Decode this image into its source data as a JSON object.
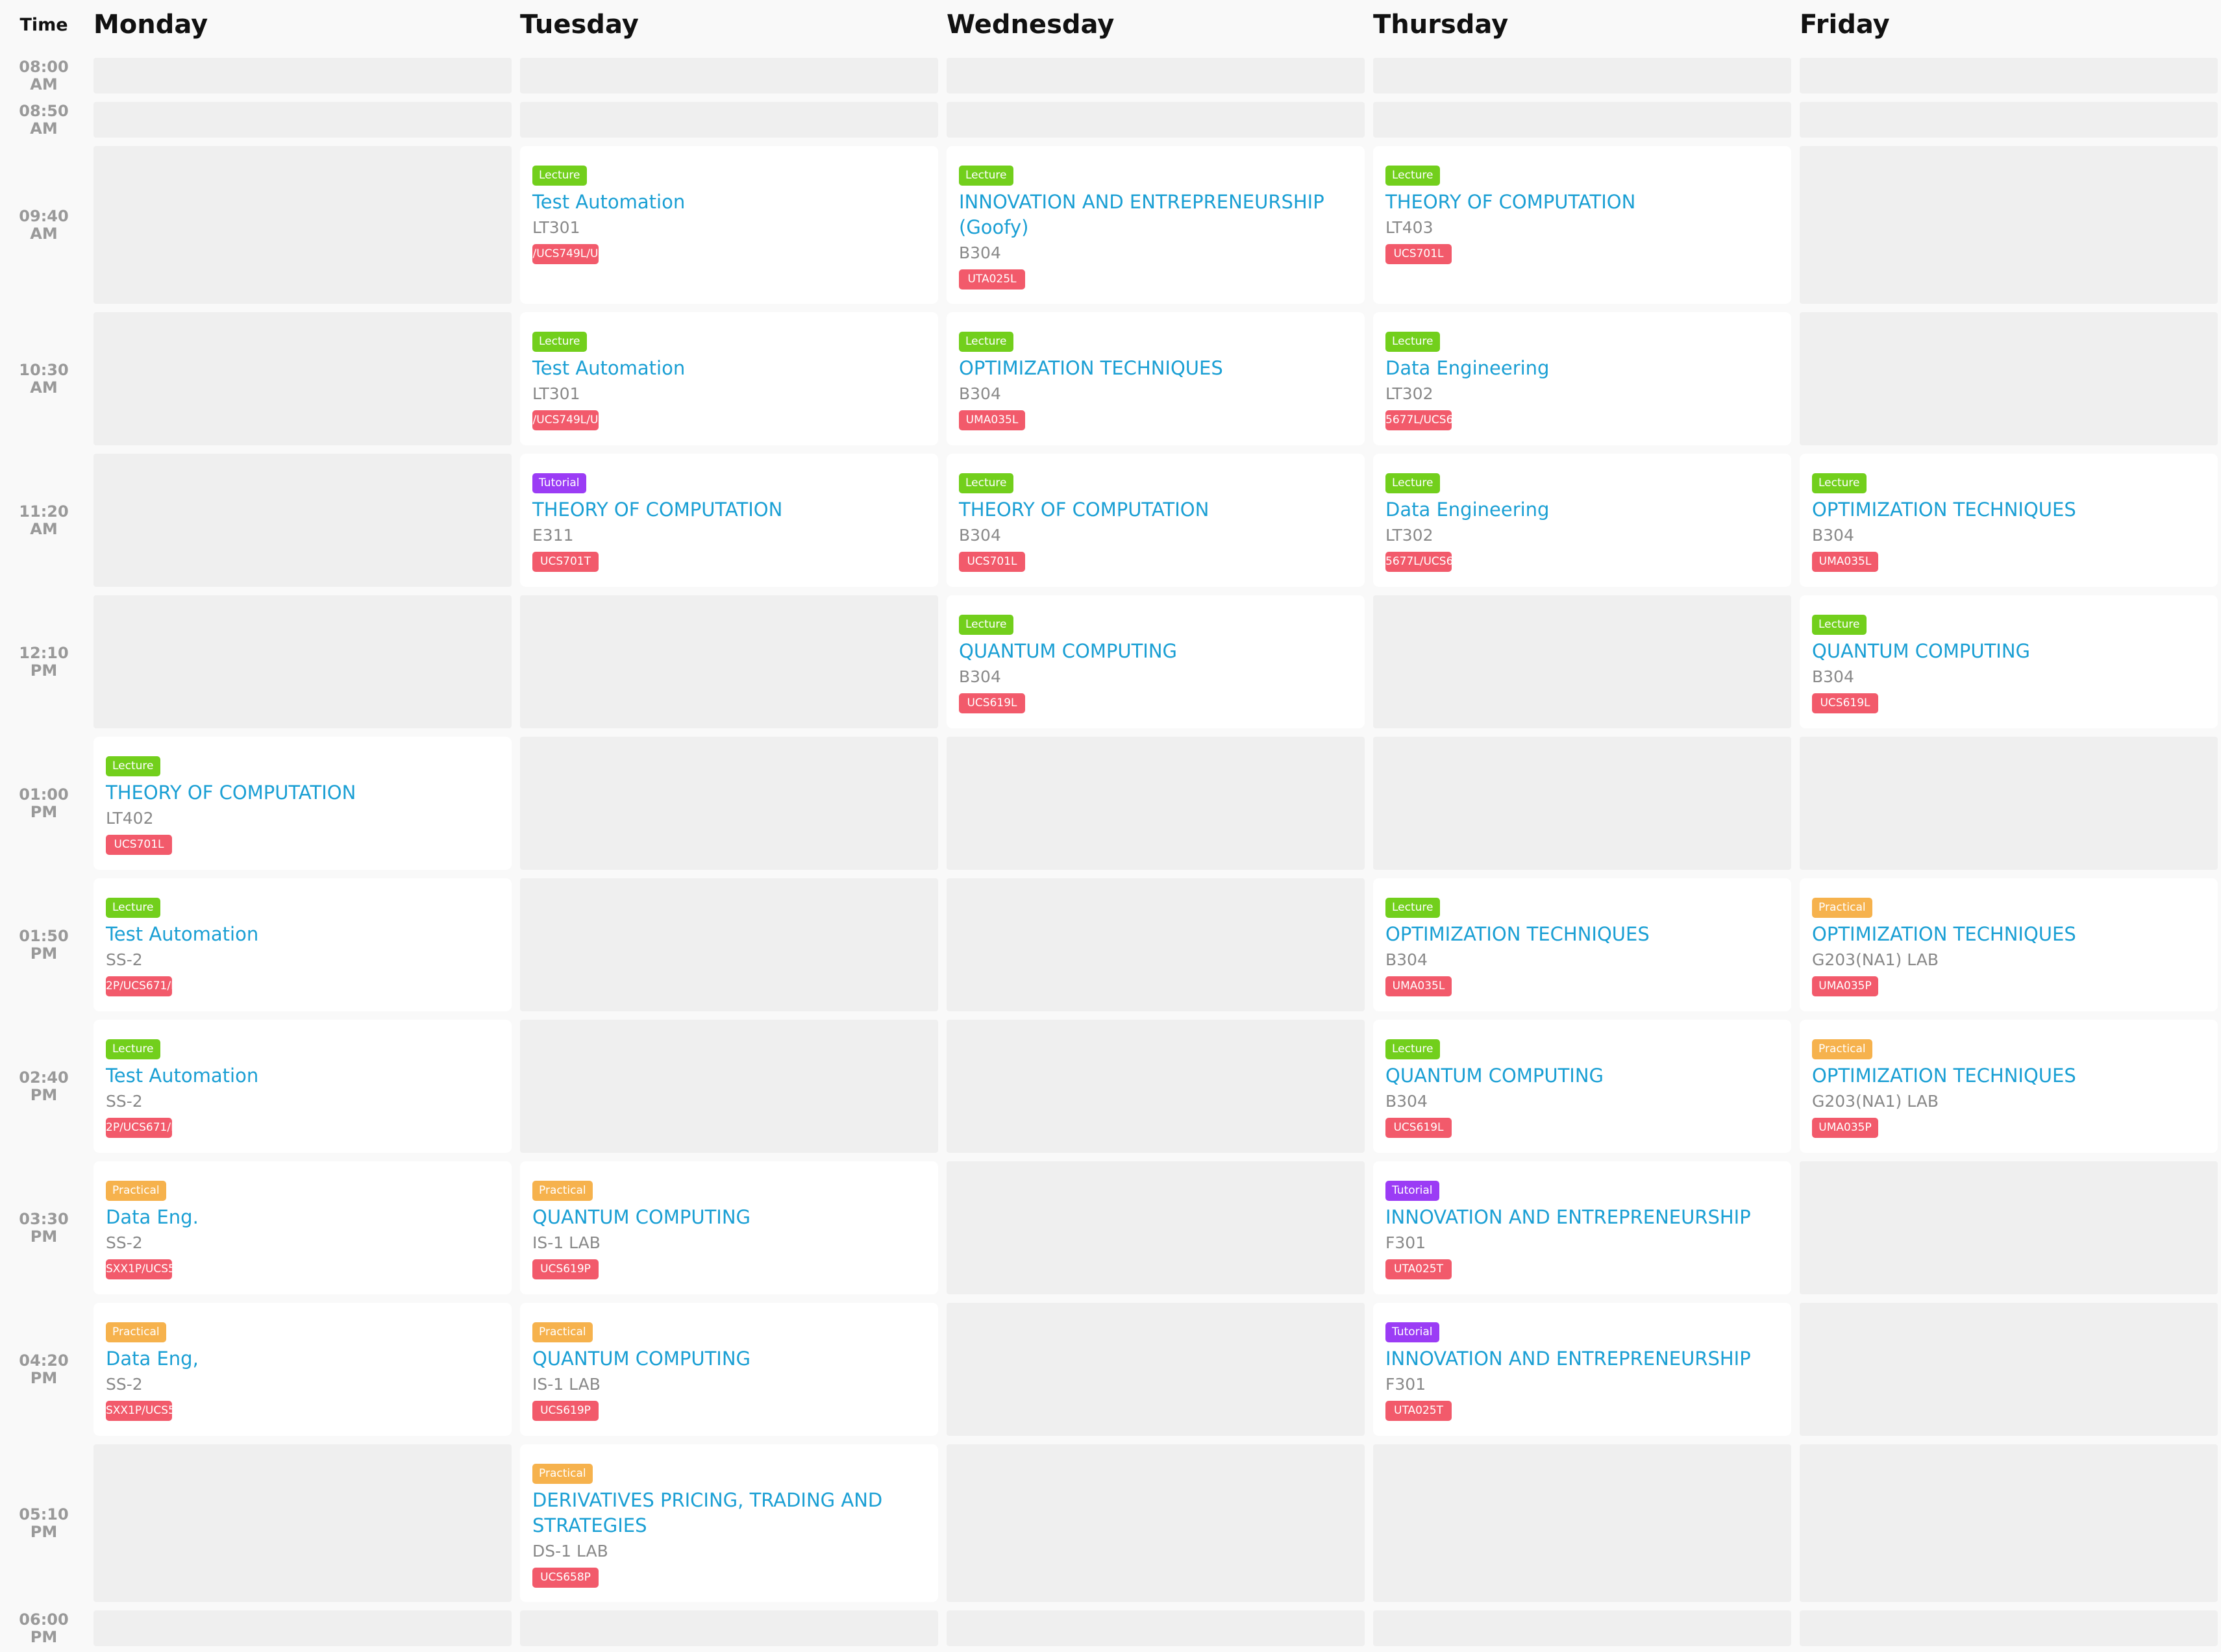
{
  "header": {
    "time_label": "Time",
    "days": [
      "Monday",
      "Tuesday",
      "Wednesday",
      "Thursday",
      "Friday"
    ]
  },
  "rows": [
    {
      "time": "08:00 AM",
      "cells": [
        null,
        null,
        null,
        null,
        null
      ]
    },
    {
      "time": "08:50 AM",
      "cells": [
        null,
        null,
        null,
        null,
        null
      ]
    },
    {
      "time": "09:40 AM",
      "cells": [
        null,
        {
          "kind": "Lecture",
          "title": "Test Automation",
          "room": "LT301",
          "code": "/UCS749L/U"
        },
        {
          "kind": "Lecture",
          "title": "INNOVATION AND ENTREPRENEURSHIP (Goofy)",
          "room": "B304",
          "code": "UTA025L"
        },
        {
          "kind": "Lecture",
          "title": "THEORY OF COMPUTATION",
          "room": "LT403",
          "code": "UCS701L"
        },
        null
      ]
    },
    {
      "time": "10:30 AM",
      "cells": [
        null,
        {
          "kind": "Lecture",
          "title": "Test Automation",
          "room": "LT301",
          "code": "/UCS749L/U"
        },
        {
          "kind": "Lecture",
          "title": "OPTIMIZATION TECHNIQUES",
          "room": "B304",
          "code": "UMA035L"
        },
        {
          "kind": "Lecture",
          "title": "Data Engineering",
          "room": "LT302",
          "code": "5677L/UCS6"
        },
        null
      ]
    },
    {
      "time": "11:20 AM",
      "cells": [
        null,
        {
          "kind": "Tutorial",
          "title": "THEORY OF COMPUTATION",
          "room": "E311",
          "code": "UCS701T"
        },
        {
          "kind": "Lecture",
          "title": "THEORY OF COMPUTATION",
          "room": "B304",
          "code": "UCS701L"
        },
        {
          "kind": "Lecture",
          "title": "Data Engineering",
          "room": "LT302",
          "code": "5677L/UCS6"
        },
        {
          "kind": "Lecture",
          "title": "OPTIMIZATION TECHNIQUES",
          "room": "B304",
          "code": "UMA035L"
        }
      ]
    },
    {
      "time": "12:10 PM",
      "cells": [
        null,
        null,
        {
          "kind": "Lecture",
          "title": "QUANTUM COMPUTING",
          "room": "B304",
          "code": "UCS619L"
        },
        null,
        {
          "kind": "Lecture",
          "title": "QUANTUM COMPUTING",
          "room": "B304",
          "code": "UCS619L"
        }
      ]
    },
    {
      "time": "01:00 PM",
      "cells": [
        {
          "kind": "Lecture",
          "title": "THEORY OF COMPUTATION",
          "room": "LT402",
          "code": "UCS701L"
        },
        null,
        null,
        null,
        null
      ]
    },
    {
      "time": "01:50 PM",
      "cells": [
        {
          "kind": "Lecture",
          "title": "Test Automation",
          "room": "SS-2",
          "code": "2P/UCS671/I"
        },
        null,
        null,
        {
          "kind": "Lecture",
          "title": "OPTIMIZATION TECHNIQUES",
          "room": "B304",
          "code": "UMA035L"
        },
        {
          "kind": "Practical",
          "title": "OPTIMIZATION TECHNIQUES",
          "room": "G203(NA1) LAB",
          "code": "UMA035P"
        }
      ]
    },
    {
      "time": "02:40 PM",
      "cells": [
        {
          "kind": "Lecture",
          "title": "Test Automation",
          "room": "SS-2",
          "code": "2P/UCS671/I"
        },
        null,
        null,
        {
          "kind": "Lecture",
          "title": "QUANTUM COMPUTING",
          "room": "B304",
          "code": "UCS619L"
        },
        {
          "kind": "Practical",
          "title": "OPTIMIZATION TECHNIQUES",
          "room": "G203(NA1) LAB",
          "code": "UMA035P"
        }
      ]
    },
    {
      "time": "03:30 PM",
      "cells": [
        {
          "kind": "Practical",
          "title": "Data Eng.",
          "room": "SS-2",
          "code": "SXX1P/UCS5"
        },
        {
          "kind": "Practical",
          "title": "QUANTUM COMPUTING",
          "room": "IS-1 LAB",
          "code": "UCS619P"
        },
        null,
        {
          "kind": "Tutorial",
          "title": "INNOVATION AND ENTREPRENEURSHIP",
          "room": "F301",
          "code": "UTA025T"
        },
        null
      ]
    },
    {
      "time": "04:20 PM",
      "cells": [
        {
          "kind": "Practical",
          "title": "Data Eng,",
          "room": "SS-2",
          "code": "SXX1P/UCS5"
        },
        {
          "kind": "Practical",
          "title": "QUANTUM COMPUTING",
          "room": "IS-1 LAB",
          "code": "UCS619P"
        },
        null,
        {
          "kind": "Tutorial",
          "title": "INNOVATION AND ENTREPRENEURSHIP",
          "room": "F301",
          "code": "UTA025T"
        },
        null
      ]
    },
    {
      "time": "05:10 PM",
      "cells": [
        null,
        {
          "kind": "Practical",
          "title": "DERIVATIVES PRICING, TRADING AND STRATEGIES",
          "room": "DS-1 LAB",
          "code": "UCS658P"
        },
        null,
        null,
        null
      ]
    },
    {
      "time": "06:00 PM",
      "cells": [
        null,
        null,
        null,
        null,
        null
      ]
    }
  ]
}
